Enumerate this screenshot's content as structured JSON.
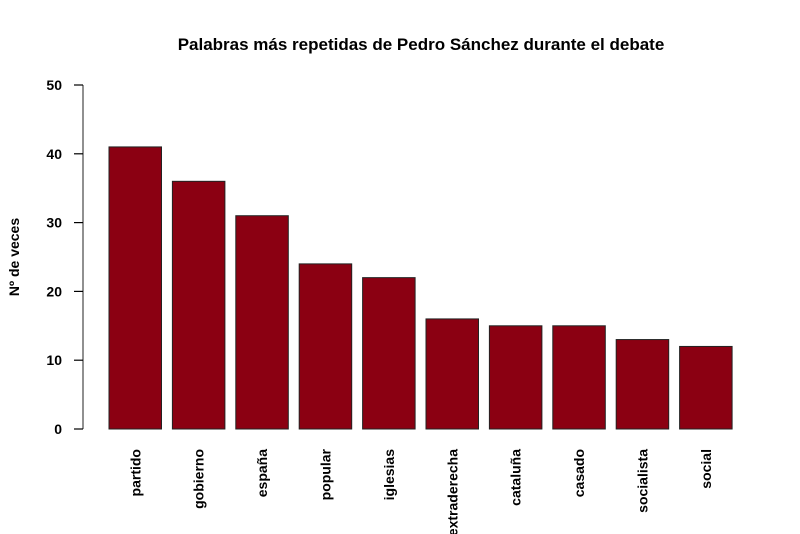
{
  "chart_data": {
    "type": "bar",
    "title": "Palabras más repetidas de Pedro Sánchez durante el debate",
    "xlabel": "",
    "ylabel": "Nº de veces",
    "categories": [
      "partido",
      "gobierno",
      "españa",
      "popular",
      "iglesias",
      "extraderecha",
      "cataluña",
      "casado",
      "socialista",
      "social"
    ],
    "values": [
      41,
      36,
      31,
      24,
      22,
      16,
      15,
      15,
      13,
      12
    ],
    "ylim": [
      0,
      50
    ],
    "yticks": [
      "0",
      "10",
      "20",
      "30",
      "40",
      "50"
    ],
    "grid": false,
    "bar_color": "#8B0012"
  }
}
